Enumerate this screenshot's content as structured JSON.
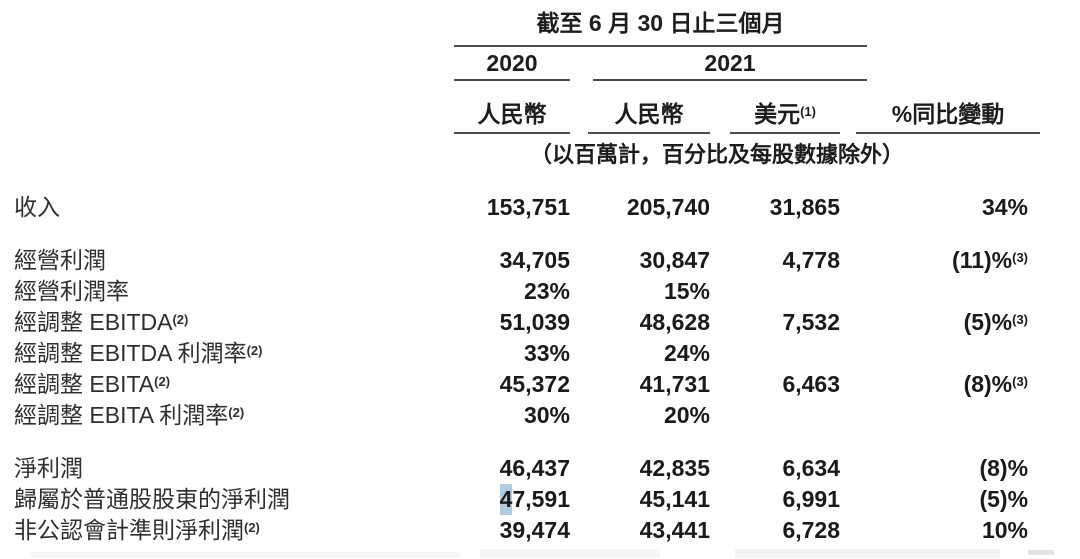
{
  "page": {
    "background": "#ffffff"
  },
  "table": {
    "title": "截至 6 月 30 日止三個月",
    "col_2020": "2020",
    "col_2021": "2021",
    "subheaders": {
      "rmb_2020": "人民幣",
      "rmb_2021": "人民幣",
      "usd": "美元",
      "usd_sup": "(1)",
      "yoy": "%同比變動"
    },
    "note": "（以百萬計，百分比及每股數據除外）",
    "highlight_color": "#aecde5",
    "rows": [
      {
        "label": "收入",
        "v2020": "153,751",
        "v2021": "205,740",
        "usd": "31,865",
        "yoy": "34%"
      },
      {
        "spacer": true
      },
      {
        "label": "經營利潤",
        "v2020": "34,705",
        "v2021": "30,847",
        "usd": "4,778",
        "yoy": "(11)%",
        "yoy_sup": "(3)"
      },
      {
        "label": "經營利潤率",
        "v2020": "23%",
        "v2021": "15%"
      },
      {
        "label": "經調整 EBITDA",
        "label_sup": "(2)",
        "v2020": "51,039",
        "v2021": "48,628",
        "usd": "7,532",
        "yoy": "(5)%",
        "yoy_sup": "(3)"
      },
      {
        "label": "經調整 EBITDA 利潤率",
        "label_sup": "(2)",
        "v2020": "33%",
        "v2021": "24%"
      },
      {
        "label": "經調整 EBITA",
        "label_sup": "(2)",
        "v2020": "45,372",
        "v2021": "41,731",
        "usd": "6,463",
        "yoy": "(8)%",
        "yoy_sup": "(3)"
      },
      {
        "label": "經調整 EBITA 利潤率",
        "label_sup": "(2)",
        "v2020": "30%",
        "v2021": "20%"
      },
      {
        "spacer": true
      },
      {
        "label": "淨利潤",
        "v2020": "46,437",
        "v2021": "42,835",
        "usd": "6,634",
        "yoy": "(8)%"
      },
      {
        "label": "歸屬於普通股股東的淨利潤",
        "v2020_hl": "4",
        "v2020": "7,591",
        "v2021": "45,141",
        "usd": "6,991",
        "yoy": "(5)%"
      },
      {
        "label": "非公認會計準則淨利潤",
        "label_sup": "(2)",
        "v2020": "39,474",
        "v2021": "43,441",
        "usd": "6,728",
        "yoy": "10%"
      }
    ]
  }
}
